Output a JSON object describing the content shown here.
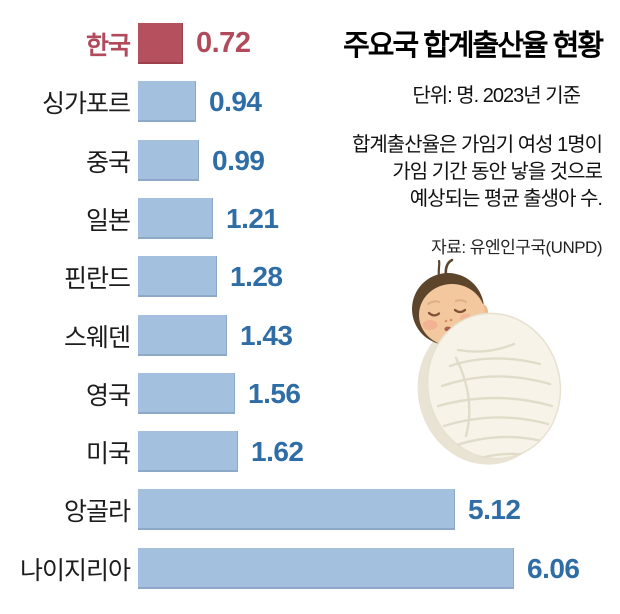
{
  "header": {
    "title": "주요국 합계출산율 현황",
    "unit_note": "단위: 명. 2023년 기준",
    "description_lines": [
      "합계출산율은 가임기 여성 1명이",
      "가임 기간 동안 낳을 것으로",
      "예상되는 평균 출생아 수."
    ],
    "source": "자료: 유엔인구국(UNPD)"
  },
  "chart_data": {
    "type": "bar",
    "orientation": "horizontal",
    "title": "주요국 합계출산율 현황",
    "unit": "명",
    "basis": "2023년 기준",
    "categories": [
      "한국",
      "싱가포르",
      "중국",
      "일본",
      "핀란드",
      "스웨덴",
      "영국",
      "미국",
      "앙골라",
      "나이지리아"
    ],
    "values": [
      0.72,
      0.94,
      0.99,
      1.21,
      1.28,
      1.43,
      1.56,
      1.62,
      5.12,
      6.06
    ],
    "highlight_category": "한국",
    "xlim": [
      0,
      6.5
    ],
    "grid": false,
    "legend": "none",
    "colors": {
      "highlight_bar": "#b5515f",
      "highlight_text": "#b14b5c",
      "bar": "#a3c1de",
      "value_text": "#2e6da6",
      "label_text": "#1c1c1c"
    }
  },
  "illustration": {
    "name": "sleeping-swaddled-baby"
  }
}
